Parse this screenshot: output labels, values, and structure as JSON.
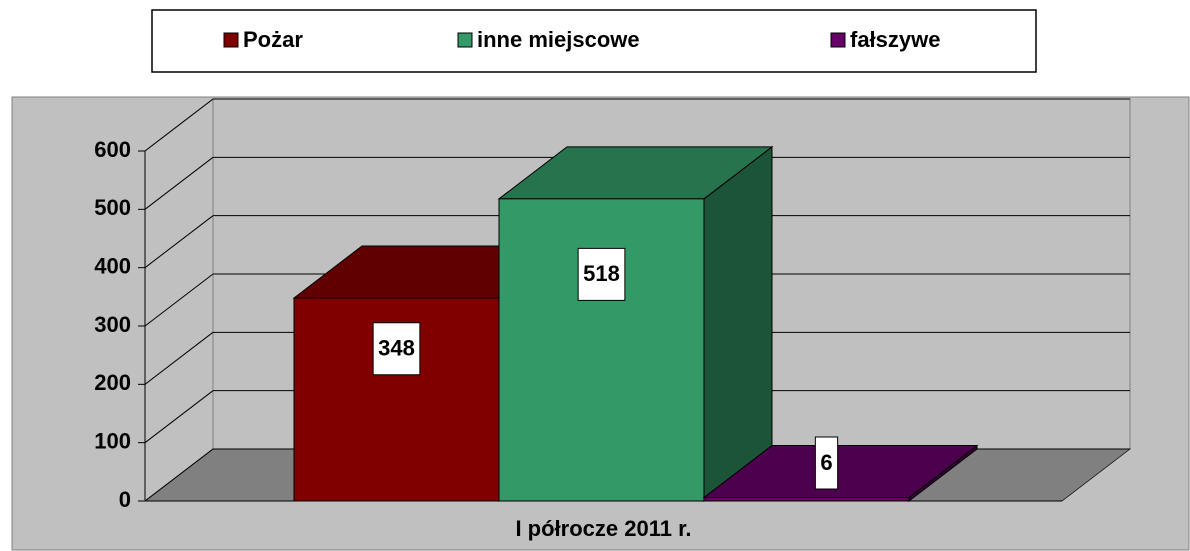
{
  "chart_data": {
    "type": "bar3d",
    "categories": [
      "I półrocze 2011 r."
    ],
    "series": [
      {
        "name": "Pożar",
        "color": "#800000",
        "values": [
          348
        ]
      },
      {
        "name": "inne miejscowe",
        "color": "#339966",
        "values": [
          518
        ]
      },
      {
        "name": "fałszywe",
        "color": "#660066",
        "values": [
          6
        ]
      }
    ],
    "ylim": [
      0,
      600
    ],
    "yticks": [
      0,
      100,
      200,
      300,
      400,
      500,
      600
    ],
    "grid": true,
    "legend": "top"
  }
}
